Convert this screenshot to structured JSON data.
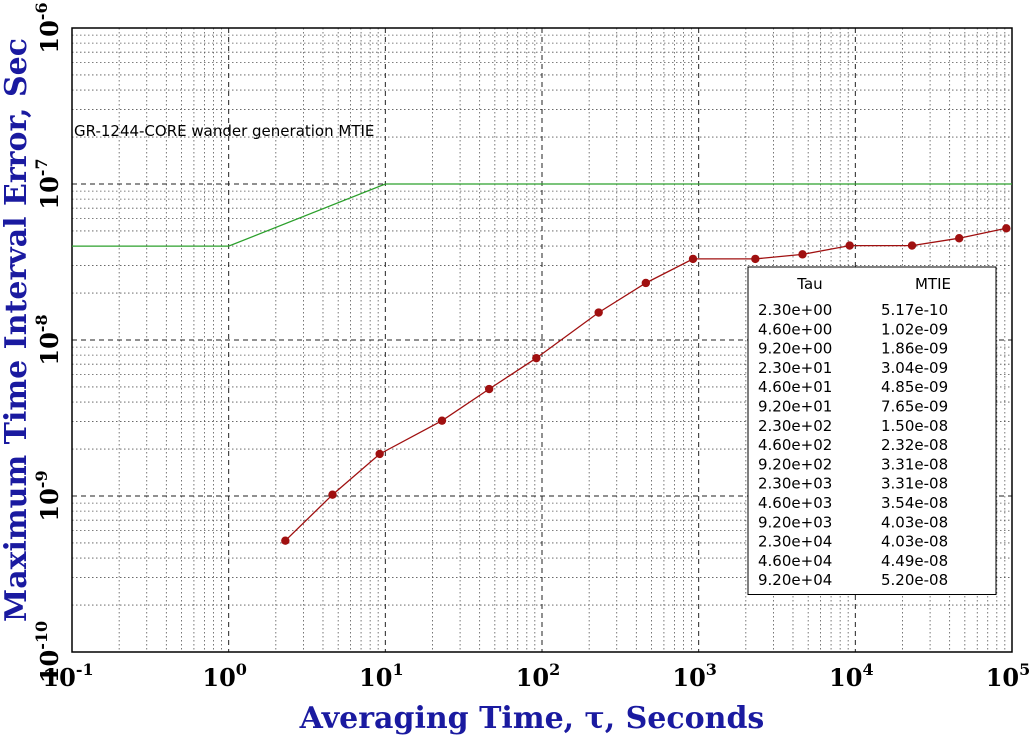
{
  "chart_data": {
    "type": "line",
    "xlabel": "Averaging Time, τ, Seconds",
    "ylabel": "Maximum Time Interval Error, Sec",
    "xscale": "log",
    "yscale": "log",
    "xlim": [
      0.1,
      100000
    ],
    "ylim": [
      1e-10,
      1e-06
    ],
    "grid": true,
    "x_tick_labels": [
      {
        "base": "10",
        "exp": "-1",
        "value": 0.1
      },
      {
        "base": "10",
        "exp": "0",
        "value": 1
      },
      {
        "base": "10",
        "exp": "1",
        "value": 10
      },
      {
        "base": "10",
        "exp": "2",
        "value": 100
      },
      {
        "base": "10",
        "exp": "3",
        "value": 1000
      },
      {
        "base": "10",
        "exp": "4",
        "value": 10000
      },
      {
        "base": "10",
        "exp": "5",
        "value": 100000
      }
    ],
    "y_tick_labels": [
      {
        "base": "10",
        "exp": "-10",
        "value": 1e-10
      },
      {
        "base": "10",
        "exp": "-9",
        "value": 1e-09
      },
      {
        "base": "10",
        "exp": "-8",
        "value": 1e-08
      },
      {
        "base": "10",
        "exp": "-7",
        "value": 1e-07
      },
      {
        "base": "10",
        "exp": "-6",
        "value": 1e-06
      }
    ],
    "annotation": "GR-1244-CORE wander generation MTIE",
    "series": [
      {
        "kind": "mask",
        "color": "#2ca02c",
        "x": [
          0.1,
          1,
          10,
          100000
        ],
        "y": [
          4e-08,
          4e-08,
          1e-07,
          1e-07
        ]
      },
      {
        "kind": "measured",
        "color": "#a01010",
        "x": [
          2.3,
          4.6,
          9.2,
          23,
          46,
          92,
          230,
          460,
          920,
          2300,
          4600,
          9200,
          23000,
          46000,
          92000
        ],
        "y": [
          5.17e-10,
          1.02e-09,
          1.86e-09,
          3.04e-09,
          4.85e-09,
          7.65e-09,
          1.5e-08,
          2.32e-08,
          3.31e-08,
          3.31e-08,
          3.54e-08,
          4.03e-08,
          4.03e-08,
          4.49e-08,
          5.2e-08
        ]
      }
    ],
    "legend_table": {
      "position": "bottom-right",
      "headers": [
        "Tau",
        "MTIE"
      ],
      "rows": [
        [
          "2.30e+00",
          "5.17e-10"
        ],
        [
          "4.60e+00",
          "1.02e-09"
        ],
        [
          "9.20e+00",
          "1.86e-09"
        ],
        [
          "2.30e+01",
          "3.04e-09"
        ],
        [
          "4.60e+01",
          "4.85e-09"
        ],
        [
          "9.20e+01",
          "7.65e-09"
        ],
        [
          "2.30e+02",
          "1.50e-08"
        ],
        [
          "4.60e+02",
          "2.32e-08"
        ],
        [
          "9.20e+02",
          "3.31e-08"
        ],
        [
          "2.30e+03",
          "3.31e-08"
        ],
        [
          "4.60e+03",
          "3.54e-08"
        ],
        [
          "9.20e+03",
          "4.03e-08"
        ],
        [
          "2.30e+04",
          "4.03e-08"
        ],
        [
          "4.60e+04",
          "4.49e-08"
        ],
        [
          "9.20e+04",
          "5.20e-08"
        ]
      ]
    }
  }
}
